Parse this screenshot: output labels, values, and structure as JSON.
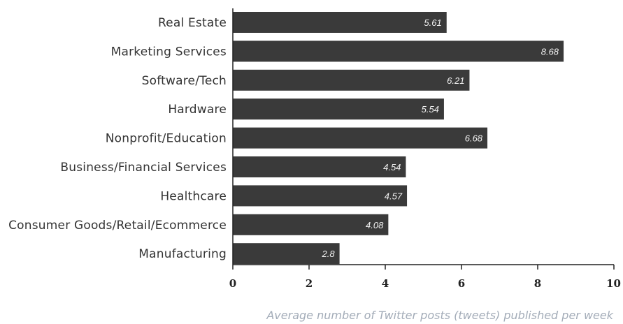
{
  "chart_data": {
    "type": "bar",
    "orientation": "horizontal",
    "categories": [
      "Real Estate",
      "Marketing Services",
      "Software/Tech",
      "Hardware",
      "Nonprofit/Education",
      "Business/Financial Services",
      "Healthcare",
      "Consumer Goods/Retail/Ecommerce",
      "Manufacturing"
    ],
    "values": [
      5.61,
      8.68,
      6.21,
      5.54,
      6.68,
      4.54,
      4.57,
      4.08,
      2.8
    ],
    "value_labels": [
      "5.61",
      "8.68",
      "6.21",
      "5.54",
      "6.68",
      "4.54",
      "4.57",
      "4.08",
      "2.8"
    ],
    "xlabel": "Average number of Twitter posts (tweets) published per week",
    "ylabel": "",
    "title": "",
    "xlim": [
      0,
      10
    ],
    "x_ticks": [
      "0",
      "2",
      "4",
      "6",
      "8",
      "10"
    ],
    "grid": false,
    "legend": "none",
    "colors": {
      "bar": "#3a3a3a",
      "value_text": "#f2f2f2",
      "axis": "#222222",
      "category_text": "#333333",
      "axis_title": "#a3acb8"
    }
  }
}
